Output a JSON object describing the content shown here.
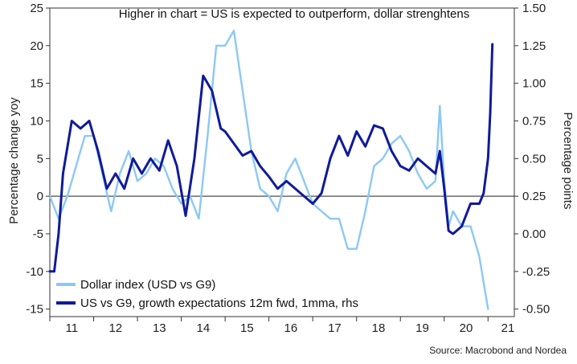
{
  "chart_data": {
    "type": "line",
    "annotation": "Higher in chart = US is expected to outperform, dollar strenghtens",
    "source": "Source: Macrobond and Nordea",
    "ylabel_left": "Percentage change yoy",
    "ylabel_right": "Percentage points",
    "xlim": [
      2011.0,
      2021.6
    ],
    "ylim_left": [
      -16,
      25
    ],
    "ylim_right": [
      -0.55,
      1.5
    ],
    "zero_line": true,
    "x_ticks": [
      "11",
      "12",
      "13",
      "14",
      "15",
      "16",
      "17",
      "18",
      "19",
      "20",
      "21"
    ],
    "y_left_ticks": [
      "25",
      "20",
      "15",
      "10",
      "5",
      "0",
      "-5",
      "-10",
      "-15"
    ],
    "y_right_ticks": [
      "1.50",
      "1.25",
      "1.00",
      "0.75",
      "0.50",
      "0.25",
      "0.00",
      "-0.25",
      "-0.50"
    ],
    "legend_position": "bottom-left",
    "series": [
      {
        "name": "Dollar index (USD vs G9)",
        "axis": "left",
        "color": "#8cc8f5",
        "x": [
          2011.0,
          2011.2,
          2011.4,
          2011.6,
          2011.8,
          2012.0,
          2012.2,
          2012.4,
          2012.6,
          2012.8,
          2013.0,
          2013.2,
          2013.4,
          2013.6,
          2013.8,
          2014.0,
          2014.2,
          2014.4,
          2014.6,
          2014.8,
          2015.0,
          2015.2,
          2015.4,
          2015.6,
          2015.8,
          2016.0,
          2016.2,
          2016.4,
          2016.6,
          2016.8,
          2017.0,
          2017.2,
          2017.4,
          2017.6,
          2017.8,
          2018.0,
          2018.2,
          2018.4,
          2018.6,
          2018.8,
          2019.0,
          2019.2,
          2019.4,
          2019.6,
          2019.8,
          2019.9,
          2020.0,
          2020.1,
          2020.2,
          2020.4,
          2020.6,
          2020.8,
          2021.0
        ],
        "values": [
          0,
          -3,
          0,
          4,
          8,
          8,
          3,
          -2,
          3,
          6,
          2,
          3,
          5,
          4,
          1,
          -1,
          0,
          -3,
          8,
          20,
          20,
          22,
          14,
          6,
          1,
          0,
          -2,
          3,
          5,
          2,
          -1,
          -2,
          -3,
          -3,
          -7,
          -7,
          -2,
          4,
          5,
          7,
          8,
          6,
          3,
          1,
          2,
          12,
          2,
          -4,
          -2,
          -4,
          -4,
          -8,
          -15
        ]
      },
      {
        "name": "US vs G9, growth expectations 12m fwd, 1mma, rhs",
        "axis": "right",
        "color": "#0f1a9a",
        "x": [
          2011.0,
          2011.1,
          2011.2,
          2011.3,
          2011.5,
          2011.7,
          2011.9,
          2012.1,
          2012.3,
          2012.5,
          2012.7,
          2012.9,
          2013.1,
          2013.3,
          2013.5,
          2013.7,
          2013.9,
          2014.1,
          2014.3,
          2014.5,
          2014.7,
          2014.9,
          2015.0,
          2015.2,
          2015.4,
          2015.6,
          2015.8,
          2016.0,
          2016.2,
          2016.4,
          2016.6,
          2016.8,
          2017.0,
          2017.2,
          2017.4,
          2017.6,
          2017.8,
          2018.0,
          2018.2,
          2018.4,
          2018.6,
          2018.8,
          2019.0,
          2019.2,
          2019.4,
          2019.6,
          2019.8,
          2019.9,
          2020.0,
          2020.1,
          2020.2,
          2020.4,
          2020.6,
          2020.8,
          2020.9,
          2021.0,
          2021.05,
          2021.1
        ],
        "values": [
          -0.25,
          -0.25,
          0.0,
          0.4,
          0.75,
          0.7,
          0.75,
          0.55,
          0.3,
          0.4,
          0.3,
          0.5,
          0.4,
          0.5,
          0.42,
          0.62,
          0.45,
          0.12,
          0.5,
          1.05,
          0.95,
          0.7,
          0.68,
          0.6,
          0.52,
          0.55,
          0.45,
          0.38,
          0.3,
          0.35,
          0.3,
          0.25,
          0.2,
          0.27,
          0.5,
          0.65,
          0.52,
          0.68,
          0.58,
          0.72,
          0.7,
          0.55,
          0.45,
          0.42,
          0.5,
          0.45,
          0.4,
          0.55,
          0.3,
          0.02,
          0.0,
          0.05,
          0.2,
          0.2,
          0.27,
          0.5,
          0.8,
          1.26
        ]
      }
    ]
  }
}
